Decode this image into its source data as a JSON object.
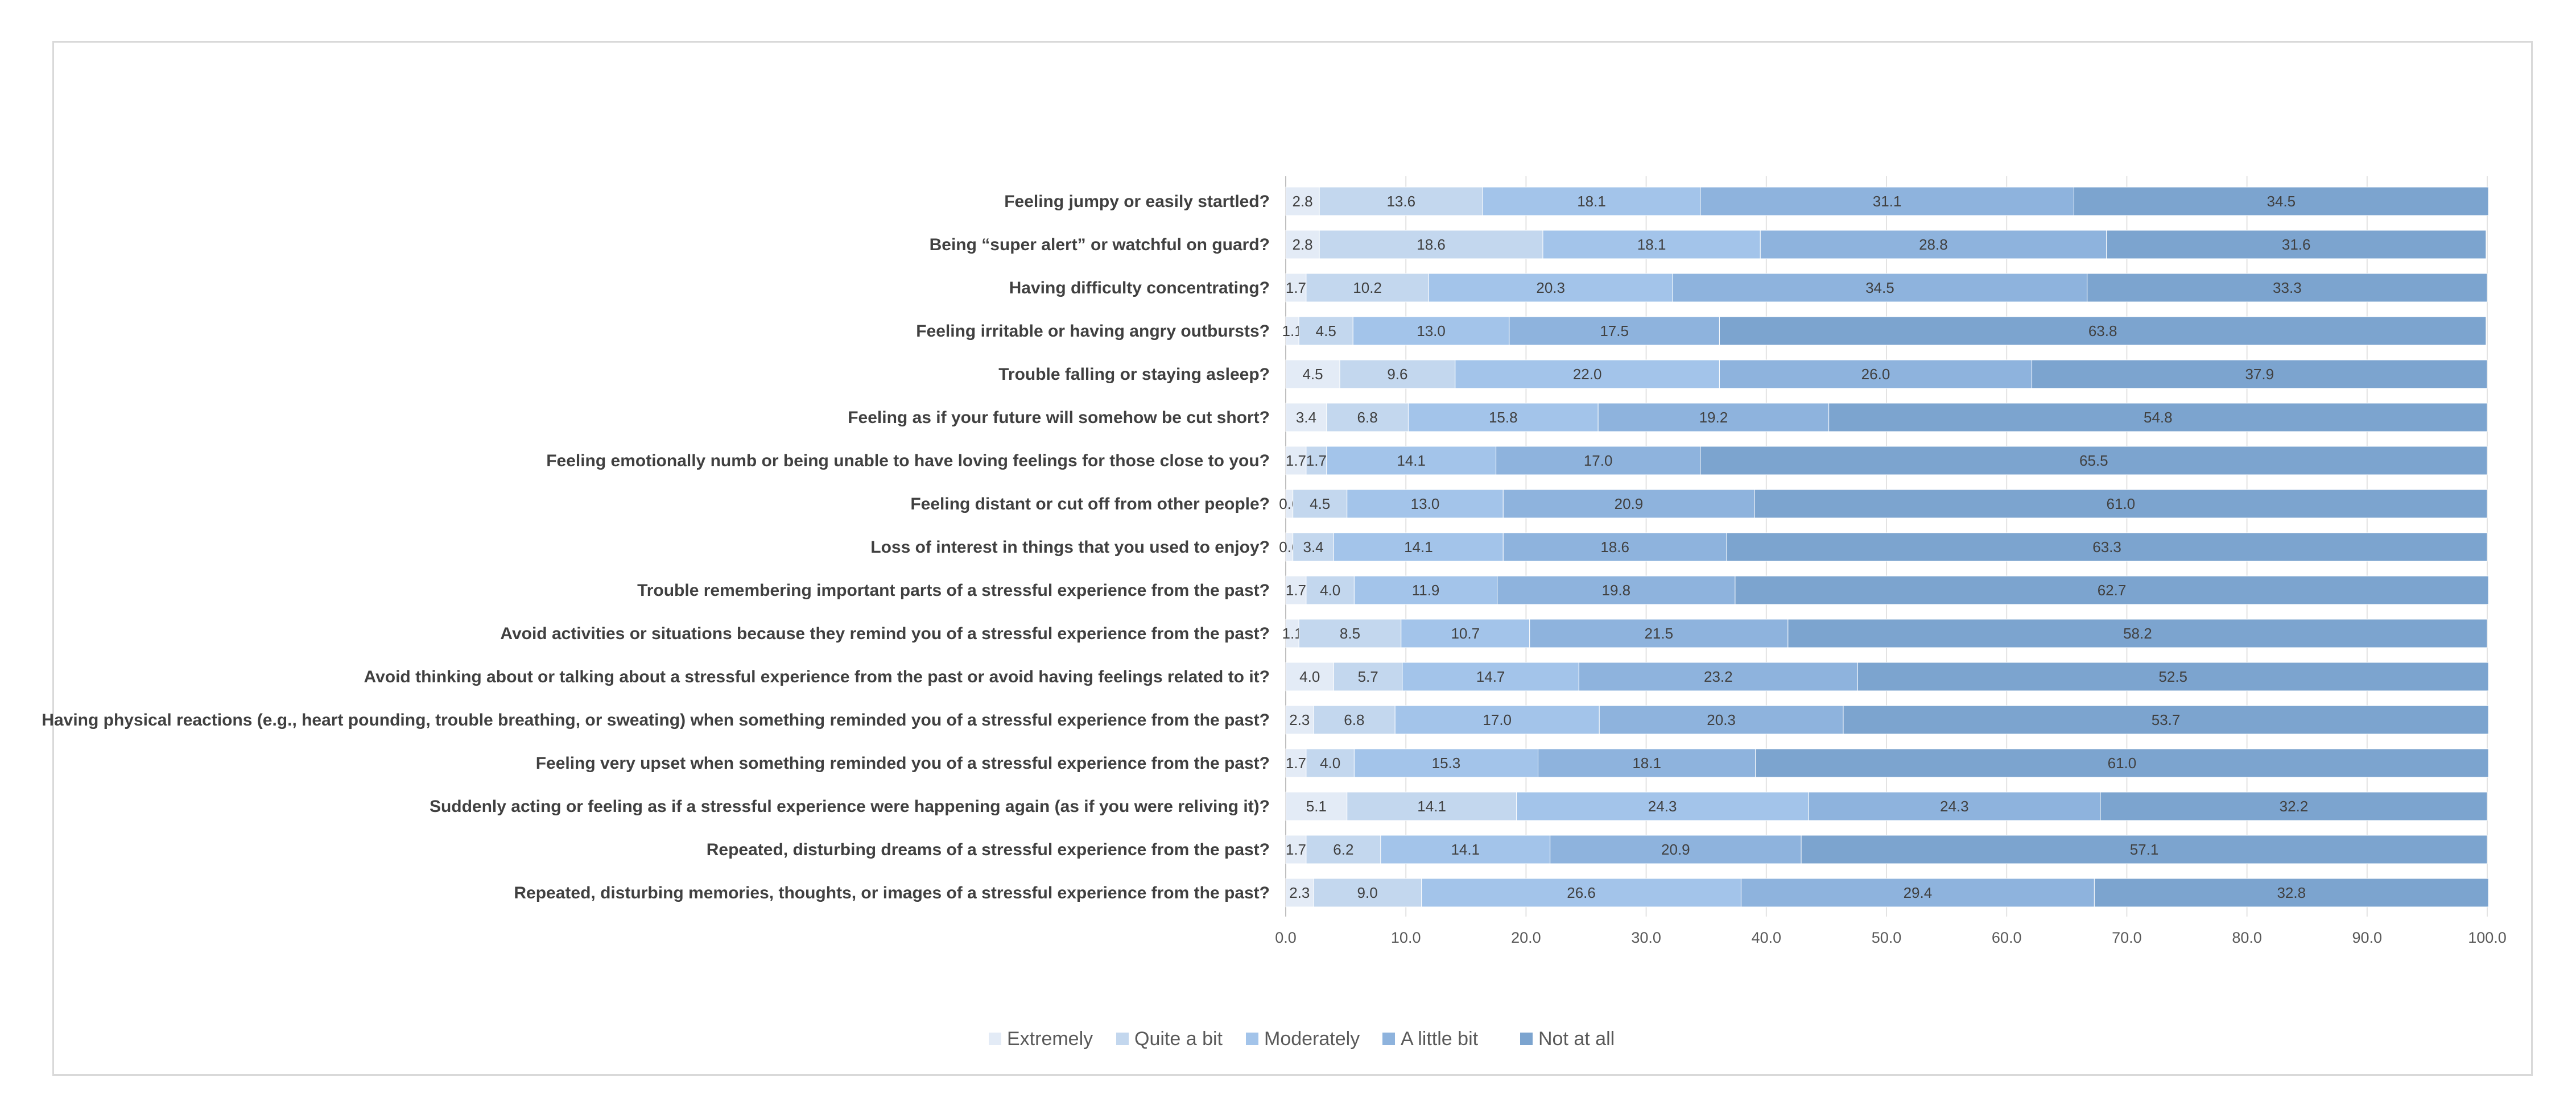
{
  "chart_data": {
    "type": "bar",
    "orientation": "horizontal",
    "stacked": "percent",
    "title": "",
    "xlabel": "",
    "ylabel": "",
    "xlim": [
      0,
      100
    ],
    "xticks": [
      "0.0",
      "10.0",
      "20.0",
      "30.0",
      "40.0",
      "50.0",
      "60.0",
      "70.0",
      "80.0",
      "90.0",
      "100.0"
    ],
    "grid": true,
    "legend_position": "bottom",
    "categories": [
      "Feeling jumpy or easily startled?",
      "Being “super alert” or watchful on guard?",
      "Having difficulty concentrating?",
      "Feeling irritable or having angry outbursts?",
      "Trouble falling or staying asleep?",
      "Feeling as if your future will somehow be cut short?",
      "Feeling emotionally numb or being unable to have loving feelings for those close to you?",
      "Feeling distant or cut off from other people?",
      "Loss of interest in things that you used to enjoy?",
      "Trouble remembering important parts of a stressful experience from the past?",
      "Avoid activities or situations because they remind you of a stressful experience from the past?",
      "Avoid thinking about or talking about a stressful experience from the past or avoid having feelings related to it?",
      "Having physical reactions (e.g., heart pounding, trouble breathing, or sweating) when something reminded you of a stressful experience from the past?",
      "Feeling very upset when something reminded you of a stressful experience from the past?",
      "Suddenly acting or feeling as if a stressful experience were happening again (as if you were reliving it)?",
      "Repeated, disturbing dreams of a stressful experience from the past?",
      "Repeated, disturbing memories, thoughts, or images of a stressful experience from the past?"
    ],
    "series": [
      {
        "name": "Extremely",
        "color": "#e3ebf6",
        "values": [
          2.8,
          2.8,
          1.7,
          1.1,
          4.5,
          3.4,
          1.7,
          0.6,
          0.6,
          1.7,
          1.1,
          4.0,
          2.3,
          1.7,
          5.1,
          1.7,
          2.3
        ]
      },
      {
        "name": "Quite a bit",
        "color": "#c3d7ee",
        "values": [
          13.6,
          18.6,
          10.2,
          4.5,
          9.6,
          6.8,
          1.7,
          4.5,
          3.4,
          4.0,
          8.5,
          5.7,
          6.8,
          4.0,
          14.1,
          6.2,
          9.0
        ]
      },
      {
        "name": "Moderately",
        "color": "#a3c4ea",
        "values": [
          18.1,
          18.1,
          20.3,
          13.0,
          22.0,
          15.8,
          14.1,
          13.0,
          14.1,
          11.9,
          10.7,
          14.7,
          17.0,
          15.3,
          24.3,
          14.1,
          26.6
        ]
      },
      {
        "name": "A little bit",
        "color": "#8eb3dd",
        "values": [
          31.1,
          28.8,
          34.5,
          17.5,
          26.0,
          19.2,
          17.0,
          20.9,
          18.6,
          19.8,
          21.5,
          23.2,
          20.3,
          18.1,
          24.3,
          20.9,
          29.4
        ]
      },
      {
        "name": "Not at all",
        "color": "#7ca4cf",
        "values": [
          34.5,
          31.6,
          33.3,
          63.8,
          37.9,
          54.8,
          65.5,
          61.0,
          63.3,
          62.7,
          58.2,
          52.5,
          53.7,
          61.0,
          32.2,
          57.1,
          32.8
        ]
      }
    ]
  }
}
